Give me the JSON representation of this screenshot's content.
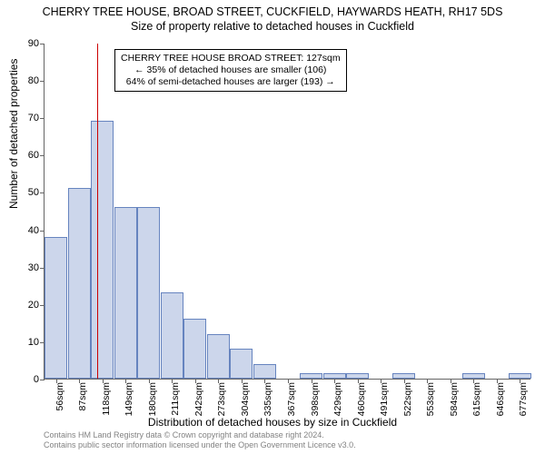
{
  "title_main": "CHERRY TREE HOUSE, BROAD STREET, CUCKFIELD, HAYWARDS HEATH, RH17 5DS",
  "title_sub": "Size of property relative to detached houses in Cuckfield",
  "ylabel": "Number of detached properties",
  "xlabel": "Distribution of detached houses by size in Cuckfield",
  "chart": {
    "type": "bar",
    "ylim": [
      0,
      90
    ],
    "ytick_step": 10,
    "plot_bg": "#ffffff",
    "bar_fill": "#ccd6eb",
    "bar_border": "#6684bf",
    "axis_color": "#646464",
    "marker_color": "#cc0000",
    "marker_bar_index": 2,
    "categories": [
      "56sqm",
      "87sqm",
      "118sqm",
      "149sqm",
      "180sqm",
      "211sqm",
      "242sqm",
      "273sqm",
      "304sqm",
      "335sqm",
      "367sqm",
      "398sqm",
      "429sqm",
      "460sqm",
      "491sqm",
      "522sqm",
      "553sqm",
      "584sqm",
      "615sqm",
      "646sqm",
      "677sqm"
    ],
    "values": [
      38,
      51,
      69,
      46,
      46,
      23,
      16,
      12,
      8,
      4,
      0,
      1.5,
      1.5,
      1.5,
      0,
      1.5,
      0,
      0,
      1.5,
      0,
      1.5
    ]
  },
  "annotation": {
    "line1": "CHERRY TREE HOUSE BROAD STREET: 127sqm",
    "line2": "← 35% of detached houses are smaller (106)",
    "line3": "64% of semi-detached houses are larger (193) →",
    "box_bg": "#ffffff",
    "box_border": "#000000"
  },
  "attribution": {
    "line1": "Contains HM Land Registry data © Crown copyright and database right 2024.",
    "line2": "Contains public sector information licensed under the Open Government Licence v3.0.",
    "color": "#828282"
  }
}
